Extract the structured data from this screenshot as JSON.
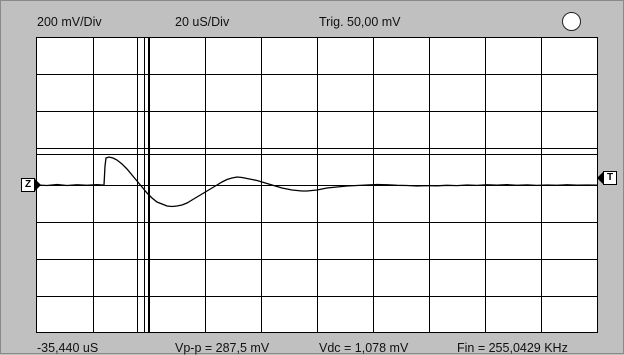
{
  "header": {
    "volts_per_div": "200 mV/Div",
    "time_per_div": "20 uS/Div",
    "trigger": "Trig. 50,00 mV"
  },
  "footer": {
    "cursor_time": "-35,440 uS",
    "vpp": "Vp-p = 287,5 mV",
    "vdc": "Vdc = 1,078 mV",
    "frequency": "Fin = 255,0429 KHz"
  },
  "markers": {
    "zero": "Z",
    "trigger": "T"
  },
  "icons": {
    "run_indicator": "circle-indicator-icon"
  },
  "colors": {
    "background": "#c0c0c0",
    "screen": "#ffffff",
    "trace": "#000000"
  }
}
